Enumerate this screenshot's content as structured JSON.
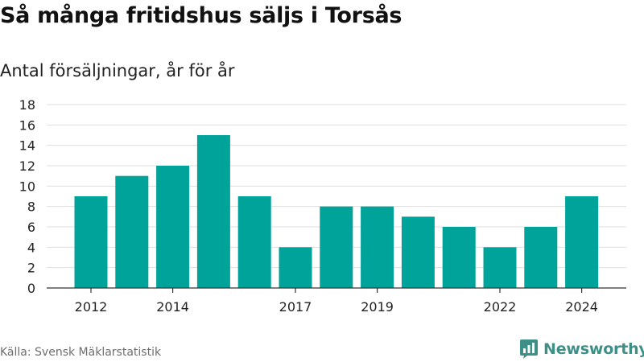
{
  "title": "Så många fritidshus säljs i Torsås",
  "subtitle": "Antal försäljningar, år för år",
  "source": "Källa: Svensk Mäklarstatistik",
  "brand": {
    "name": "Newsworthy",
    "icon": "newsworthy-logo-icon",
    "color": "#3d8f88"
  },
  "colors": {
    "bar": "#00a39a",
    "grid": "#dedede",
    "axis": "#333333"
  },
  "chart_data": {
    "type": "bar",
    "title": "Så många fritidshus säljs i Torsås",
    "subtitle": "Antal försäljningar, år för år",
    "xlabel": "",
    "ylabel": "",
    "categories": [
      "2012",
      "2013",
      "2014",
      "2015",
      "2016",
      "2017",
      "2018",
      "2019",
      "2020",
      "2021",
      "2022",
      "2023",
      "2024"
    ],
    "x_tick_labels": [
      "2012",
      "2014",
      "2017",
      "2019",
      "2022",
      "2024"
    ],
    "values": [
      9,
      11,
      12,
      15,
      9,
      4,
      8,
      8,
      7,
      6,
      4,
      6,
      9
    ],
    "ylim": [
      0,
      18
    ],
    "yticks": [
      0,
      2,
      4,
      6,
      8,
      10,
      12,
      14,
      16,
      18
    ],
    "grid": true,
    "legend": "none"
  }
}
